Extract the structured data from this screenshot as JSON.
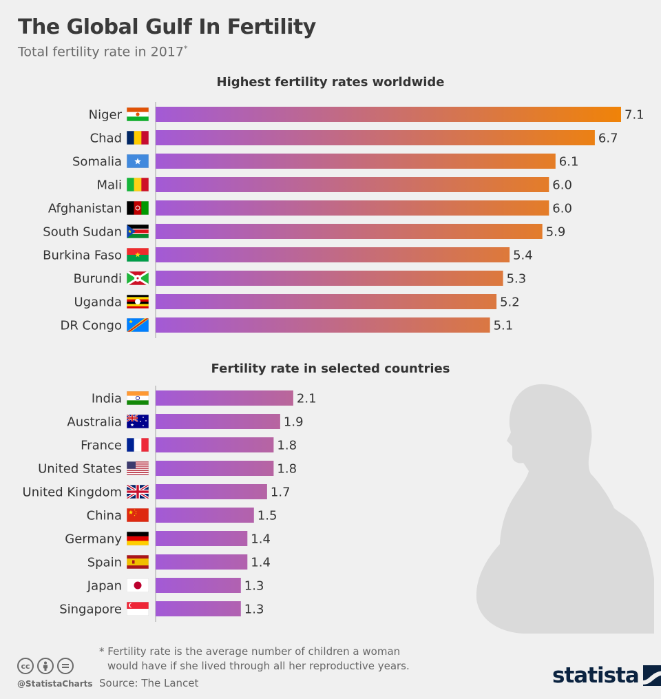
{
  "header": {
    "title": "The Global Gulf In Fertility",
    "subtitle": "Total fertility rate in 2017",
    "subtitle_marker": "*"
  },
  "chart_data": [
    {
      "type": "bar",
      "orientation": "horizontal",
      "title": "Highest fertility rates worldwide",
      "categories": [
        "Niger",
        "Chad",
        "Somalia",
        "Mali",
        "Afghanistan",
        "South Sudan",
        "Burkina Faso",
        "Burundi",
        "Uganda",
        "DR Congo"
      ],
      "values": [
        7.1,
        6.7,
        6.1,
        6.0,
        6.0,
        5.9,
        5.4,
        5.3,
        5.2,
        5.1
      ],
      "value_labels": [
        "7.1",
        "6.7",
        "6.1",
        "6.0",
        "6.0",
        "5.9",
        "5.4",
        "5.3",
        "5.2",
        "5.1"
      ],
      "flags": [
        "niger-flag-icon",
        "chad-flag-icon",
        "somalia-flag-icon",
        "mali-flag-icon",
        "afghanistan-flag-icon",
        "south-sudan-flag-icon",
        "burkina-faso-flag-icon",
        "burundi-flag-icon",
        "uganda-flag-icon",
        "dr-congo-flag-icon"
      ],
      "xlim": [
        0,
        7.1
      ]
    },
    {
      "type": "bar",
      "orientation": "horizontal",
      "title": "Fertility rate in selected countries",
      "categories": [
        "India",
        "Australia",
        "France",
        "United States",
        "United Kingdom",
        "China",
        "Germany",
        "Spain",
        "Japan",
        "Singapore"
      ],
      "values": [
        2.1,
        1.9,
        1.8,
        1.8,
        1.7,
        1.5,
        1.4,
        1.4,
        1.3,
        1.3
      ],
      "value_labels": [
        "2.1",
        "1.9",
        "1.8",
        "1.8",
        "1.7",
        "1.5",
        "1.4",
        "1.4",
        "1.3",
        "1.3"
      ],
      "flags": [
        "india-flag-icon",
        "australia-flag-icon",
        "france-flag-icon",
        "united-states-flag-icon",
        "united-kingdom-flag-icon",
        "china-flag-icon",
        "germany-flag-icon",
        "spain-flag-icon",
        "japan-flag-icon",
        "singapore-flag-icon"
      ],
      "xlim": [
        0,
        7.1
      ]
    }
  ],
  "colors": {
    "bar_gradient_start": "#a35ad6",
    "bar_gradient_end": "#f08308",
    "background": "#f0f0f0",
    "silhouette": "#d9d9d9",
    "brand": "#0b2340"
  },
  "decoration": {
    "silhouette": "pregnant-woman-silhouette-icon"
  },
  "footer": {
    "footnote_marker": "*",
    "footnote_line1": "Fertility rate is the average number of children a woman",
    "footnote_line2": "would have if she lived through all her reproductive years.",
    "source": "Source: The Lancet",
    "handle": "@StatistaCharts",
    "brand": "statista",
    "license_icons": [
      "cc-icon",
      "attribution-icon",
      "no-derivatives-icon"
    ]
  }
}
